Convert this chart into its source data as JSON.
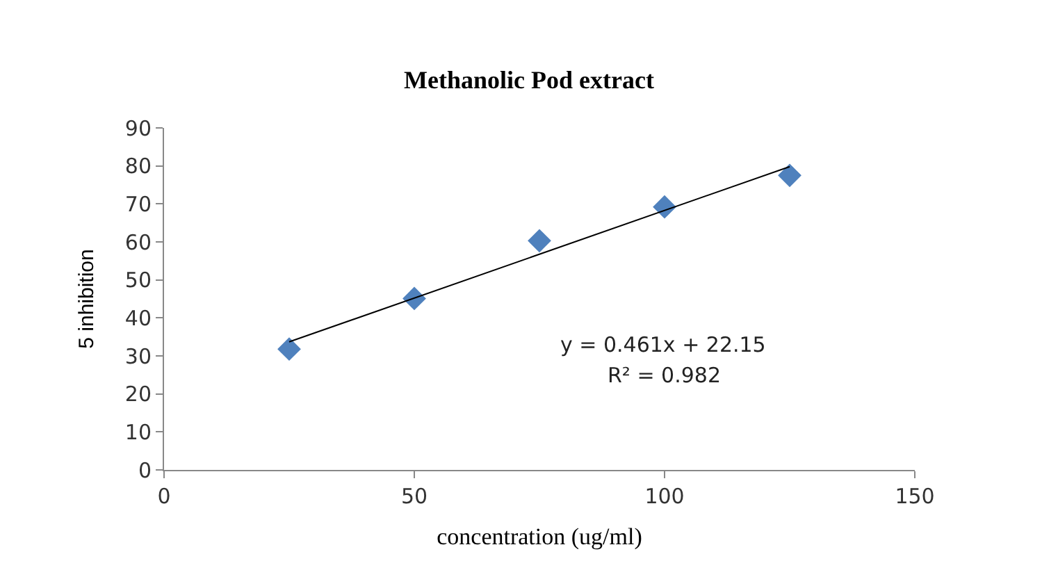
{
  "chart_data": {
    "type": "scatter",
    "title": "Methanolic Pod extract",
    "xlabel": "concentration (ug/ml)",
    "ylabel": "5 inhibition",
    "x": [
      25,
      50,
      75,
      100,
      125
    ],
    "series": [
      {
        "color": "#4f81bd",
        "marker": "diamond",
        "values": [
          31.8,
          45.1,
          60.3,
          69.2,
          77.5
        ]
      },
      {
        "type": "line",
        "color": "#000000",
        "marker": "none",
        "line_style": "solid",
        "x": [
          25,
          125
        ],
        "values": [
          33.7,
          79.8
        ]
      }
    ],
    "annotations": [
      "y = 0.461x + 22.15",
      "R² = 0.982"
    ],
    "xlim": [
      0,
      150
    ],
    "xticks": [
      0,
      50,
      100,
      150
    ],
    "ylim": [
      0,
      90
    ],
    "yticks": [
      0,
      10,
      20,
      30,
      40,
      50,
      60,
      70,
      80,
      90
    ]
  }
}
